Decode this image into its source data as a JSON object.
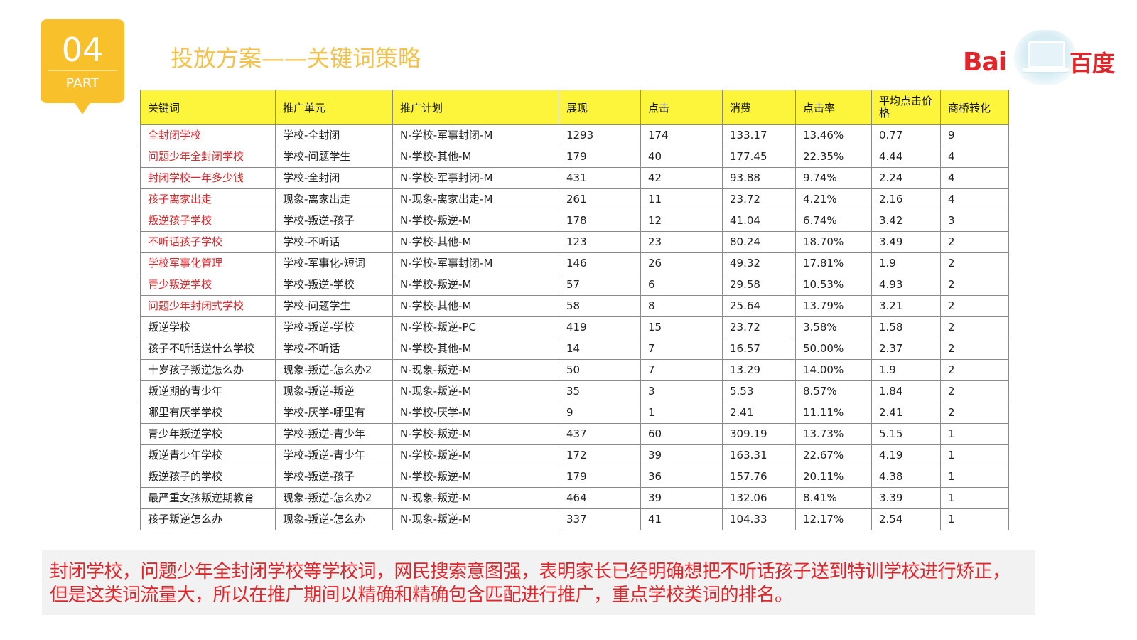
{
  "badge": {
    "number": "04",
    "label": "PART"
  },
  "title": "投放方案——关键词策略",
  "logo": {
    "latin": "Bai",
    "chinese": "百度",
    "icon": "laptop-icon"
  },
  "colors": {
    "badge": "#f8c02a",
    "title": "#f3c24d",
    "brand_red": "#e0262b",
    "header_bg": "#fdf53b"
  },
  "table": {
    "headers": [
      "关键词",
      "推广单元",
      "推广计划",
      "展现",
      "点击",
      "消费",
      "点击率",
      "平均点击价格",
      "商桥转化"
    ],
    "rows": [
      {
        "kw": "全封闭学校",
        "unit": "学校-全封闭",
        "plan": "N-学校-军事封闭-M",
        "impressions": "1293",
        "clicks": "174",
        "cost": "133.17",
        "ctr": "13.46%",
        "cpc": "0.77",
        "conv": "9",
        "highlight": true
      },
      {
        "kw": "问题少年全封闭学校",
        "unit": "学校-问题学生",
        "plan": "N-学校-其他-M",
        "impressions": "179",
        "clicks": "40",
        "cost": "177.45",
        "ctr": "22.35%",
        "cpc": "4.44",
        "conv": "4",
        "highlight": true
      },
      {
        "kw": "封闭学校一年多少钱",
        "unit": "学校-全封闭",
        "plan": "N-学校-军事封闭-M",
        "impressions": "431",
        "clicks": "42",
        "cost": "93.88",
        "ctr": "9.74%",
        "cpc": "2.24",
        "conv": "4",
        "highlight": true
      },
      {
        "kw": "孩子离家出走",
        "unit": "现象-离家出走",
        "plan": "N-现象-离家出走-M",
        "impressions": "261",
        "clicks": "11",
        "cost": "23.72",
        "ctr": "4.21%",
        "cpc": "2.16",
        "conv": "4",
        "highlight": true
      },
      {
        "kw": "叛逆孩子学校",
        "unit": "学校-叛逆-孩子",
        "plan": "N-学校-叛逆-M",
        "impressions": "178",
        "clicks": "12",
        "cost": "41.04",
        "ctr": "6.74%",
        "cpc": "3.42",
        "conv": "3",
        "highlight": true
      },
      {
        "kw": "不听话孩子学校",
        "unit": "学校-不听话",
        "plan": "N-学校-其他-M",
        "impressions": "123",
        "clicks": "23",
        "cost": "80.24",
        "ctr": "18.70%",
        "cpc": "3.49",
        "conv": "2",
        "highlight": true
      },
      {
        "kw": "学校军事化管理",
        "unit": "学校-军事化-短词",
        "plan": "N-学校-军事封闭-M",
        "impressions": "146",
        "clicks": "26",
        "cost": "49.32",
        "ctr": "17.81%",
        "cpc": "1.9",
        "conv": "2",
        "highlight": true
      },
      {
        "kw": "青少叛逆学校",
        "unit": "学校-叛逆-学校",
        "plan": "N-学校-叛逆-M",
        "impressions": "57",
        "clicks": "6",
        "cost": "29.58",
        "ctr": "10.53%",
        "cpc": "4.93",
        "conv": "2",
        "highlight": true
      },
      {
        "kw": "问题少年封闭式学校",
        "unit": "学校-问题学生",
        "plan": "N-学校-其他-M",
        "impressions": "58",
        "clicks": "8",
        "cost": "25.64",
        "ctr": "13.79%",
        "cpc": "3.21",
        "conv": "2",
        "highlight": true
      },
      {
        "kw": "叛逆学校",
        "unit": "学校-叛逆-学校",
        "plan": "N-学校-叛逆-PC",
        "impressions": "419",
        "clicks": "15",
        "cost": "23.72",
        "ctr": "3.58%",
        "cpc": "1.58",
        "conv": "2",
        "highlight": false
      },
      {
        "kw": "孩子不听话送什么学校",
        "unit": "学校-不听话",
        "plan": "N-学校-其他-M",
        "impressions": "14",
        "clicks": "7",
        "cost": "16.57",
        "ctr": "50.00%",
        "cpc": "2.37",
        "conv": "2",
        "highlight": false
      },
      {
        "kw": "十岁孩子叛逆怎么办",
        "unit": "现象-叛逆-怎么办2",
        "plan": "N-现象-叛逆-M",
        "impressions": "50",
        "clicks": "7",
        "cost": "13.29",
        "ctr": "14.00%",
        "cpc": "1.9",
        "conv": "2",
        "highlight": false
      },
      {
        "kw": "叛逆期的青少年",
        "unit": "现象-叛逆-叛逆",
        "plan": "N-现象-叛逆-M",
        "impressions": "35",
        "clicks": "3",
        "cost": "5.53",
        "ctr": "8.57%",
        "cpc": "1.84",
        "conv": "2",
        "highlight": false
      },
      {
        "kw": "哪里有厌学学校",
        "unit": "学校-厌学-哪里有",
        "plan": "N-学校-厌学-M",
        "impressions": "9",
        "clicks": "1",
        "cost": "2.41",
        "ctr": "11.11%",
        "cpc": "2.41",
        "conv": "2",
        "highlight": false
      },
      {
        "kw": "青少年叛逆学校",
        "unit": "学校-叛逆-青少年",
        "plan": "N-学校-叛逆-M",
        "impressions": "437",
        "clicks": "60",
        "cost": "309.19",
        "ctr": "13.73%",
        "cpc": "5.15",
        "conv": "1",
        "highlight": false
      },
      {
        "kw": "叛逆青少年学校",
        "unit": "学校-叛逆-青少年",
        "plan": "N-学校-叛逆-M",
        "impressions": "172",
        "clicks": "39",
        "cost": "163.31",
        "ctr": "22.67%",
        "cpc": "4.19",
        "conv": "1",
        "highlight": false
      },
      {
        "kw": "叛逆孩子的学校",
        "unit": "学校-叛逆-孩子",
        "plan": "N-学校-叛逆-M",
        "impressions": "179",
        "clicks": "36",
        "cost": "157.76",
        "ctr": "20.11%",
        "cpc": "4.38",
        "conv": "1",
        "highlight": false
      },
      {
        "kw": "最严重女孩叛逆期教育",
        "unit": "现象-叛逆-怎么办2",
        "plan": "N-现象-叛逆-M",
        "impressions": "464",
        "clicks": "39",
        "cost": "132.06",
        "ctr": "8.41%",
        "cpc": "3.39",
        "conv": "1",
        "highlight": false
      },
      {
        "kw": "孩子叛逆怎么办",
        "unit": "现象-叛逆-怎么办",
        "plan": "N-现象-叛逆-M",
        "impressions": "337",
        "clicks": "41",
        "cost": "104.33",
        "ctr": "12.17%",
        "cpc": "2.54",
        "conv": "1",
        "highlight": false
      }
    ]
  },
  "summary": "封闭学校，问题少年全封闭学校等学校词，网民搜索意图强，表明家长已经明确想把不听话孩子送到特训学校进行矫正，但是这类词流量大，所以在推广期间以精确和精确包含匹配进行推广，重点学校类词的排名。"
}
